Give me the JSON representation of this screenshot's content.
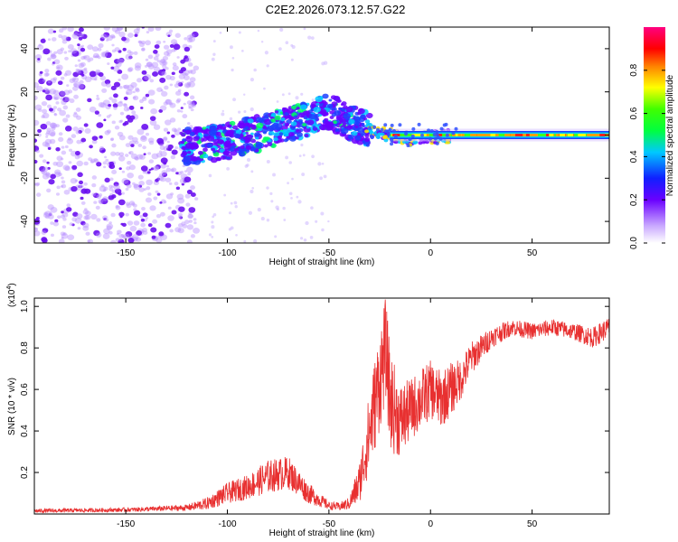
{
  "figure_title": "C2E2.2026.073.12.57.G22",
  "chart_data": [
    {
      "type": "heatmap",
      "title": "C2E2.2026.073.12.57.G22",
      "xlabel": "Height of straight line (km)",
      "ylabel": "Frequency (Hz)",
      "xlim": [
        -195,
        88
      ],
      "ylim": [
        -50,
        50
      ],
      "x_ticks": [
        -150,
        -100,
        -50,
        0,
        50
      ],
      "y_ticks": [
        -40,
        -20,
        0,
        20,
        40
      ],
      "colorbar": {
        "label": "Normalized spectral amplitude",
        "range": [
          0.0,
          1.0
        ],
        "ticks": [
          "0.0",
          "0.2",
          "0.4",
          "0.6",
          "0.8"
        ],
        "tick_values": [
          0.0,
          0.2,
          0.4,
          0.6,
          0.8
        ]
      },
      "ridge_center_hz": [
        {
          "x": -120,
          "y": -5
        },
        {
          "x": -100,
          "y": -3
        },
        {
          "x": -80,
          "y": 2
        },
        {
          "x": -60,
          "y": 8
        },
        {
          "x": -50,
          "y": 11
        },
        {
          "x": -40,
          "y": 6
        },
        {
          "x": -30,
          "y": 2
        },
        {
          "x": -20,
          "y": 0
        },
        {
          "x": -10,
          "y": -2
        },
        {
          "x": 0,
          "y": -1
        },
        {
          "x": 20,
          "y": 0
        },
        {
          "x": 50,
          "y": 0
        },
        {
          "x": 88,
          "y": 0
        }
      ],
      "noise_region_x": [
        -195,
        -115
      ]
    },
    {
      "type": "line",
      "title": "",
      "xlabel": "Height of straight line (km)",
      "ylabel": "SNR (10 * v/v)",
      "y_multiplier": "(x10",
      "y_multiplier_exp": "4",
      "xlim": [
        -195,
        88
      ],
      "ylim": [
        0,
        1.04
      ],
      "x_ticks": [
        -150,
        -100,
        -50,
        0,
        50
      ],
      "y_ticks": [
        0.2,
        0.4,
        0.6,
        0.8,
        1.0
      ],
      "series": [
        {
          "name": "SNR",
          "color": "#e83030",
          "x": [
            -195,
            -150,
            -120,
            -110,
            -100,
            -90,
            -80,
            -70,
            -60,
            -50,
            -45,
            -40,
            -35,
            -30,
            -25,
            -22,
            -20,
            -15,
            -10,
            -5,
            0,
            5,
            10,
            15,
            20,
            30,
            40,
            50,
            60,
            70,
            80,
            88
          ],
          "y": [
            0.015,
            0.02,
            0.03,
            0.05,
            0.1,
            0.13,
            0.18,
            0.2,
            0.1,
            0.04,
            0.035,
            0.05,
            0.15,
            0.4,
            0.65,
            0.8,
            0.55,
            0.45,
            0.5,
            0.55,
            0.6,
            0.55,
            0.6,
            0.65,
            0.75,
            0.85,
            0.9,
            0.88,
            0.9,
            0.88,
            0.85,
            0.9
          ],
          "noise_amplitude": [
            0.01,
            0.01,
            0.015,
            0.03,
            0.05,
            0.06,
            0.08,
            0.08,
            0.05,
            0.02,
            0.02,
            0.03,
            0.1,
            0.2,
            0.25,
            0.25,
            0.25,
            0.18,
            0.15,
            0.15,
            0.14,
            0.14,
            0.13,
            0.1,
            0.08,
            0.05,
            0.04,
            0.04,
            0.04,
            0.04,
            0.05,
            0.05
          ]
        }
      ]
    }
  ]
}
